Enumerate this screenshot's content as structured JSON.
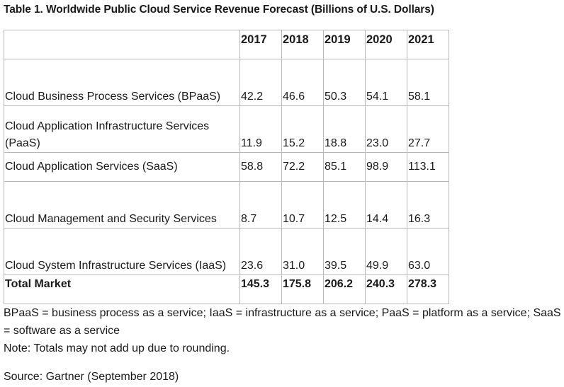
{
  "title": "Table 1. Worldwide Public Cloud Service Revenue Forecast (Billions of U.S. Dollars)",
  "table": {
    "headers": [
      "",
      "2017",
      "2018",
      "2019",
      "2020",
      "2021"
    ],
    "rows": [
      {
        "label": "Cloud Business Process Services (BPaaS)",
        "values": [
          "42.2",
          "46.6",
          "50.3",
          "54.1",
          "58.1"
        ]
      },
      {
        "label": "Cloud Application Infrastructure Services (PaaS)",
        "values": [
          "11.9",
          "15.2",
          "18.8",
          "23.0",
          "27.7"
        ]
      },
      {
        "label": "Cloud Application Services (SaaS)",
        "values": [
          "58.8",
          "72.2",
          "85.1",
          "98.9",
          "113.1"
        ]
      },
      {
        "label": "Cloud Management and Security Services",
        "values": [
          "8.7",
          "10.7",
          "12.5",
          "14.4",
          "16.3"
        ]
      },
      {
        "label": "Cloud System Infrastructure Services (IaaS)",
        "values": [
          "23.6",
          "31.0",
          "39.5",
          "49.9",
          "63.0"
        ]
      }
    ],
    "total": {
      "label": "Total Market",
      "values": [
        "145.3",
        "175.8",
        "206.2",
        "240.3",
        "278.3"
      ]
    }
  },
  "footnote_abbreviations": "BPaaS = business process as a service; IaaS = infrastructure as a service; PaaS = platform as a service; SaaS = software as a service",
  "footnote_note": "Note: Totals may not add up due to rounding.",
  "source": "Source: Gartner (September 2018)"
}
